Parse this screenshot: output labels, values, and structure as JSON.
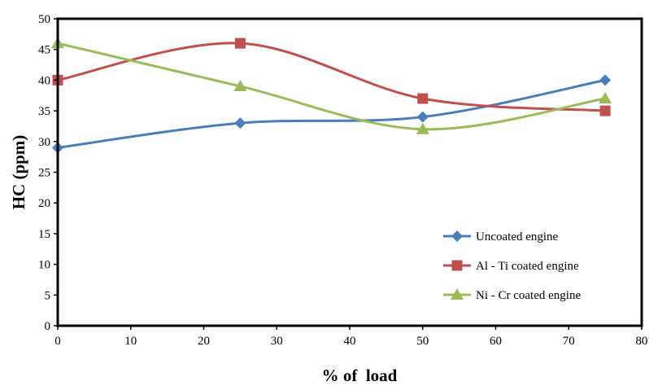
{
  "chart_data": {
    "type": "line",
    "title": "",
    "xlabel": "% of  load",
    "ylabel": "HC (ppm)",
    "xlim": [
      0,
      80
    ],
    "ylim": [
      0,
      50
    ],
    "xticks": [
      0,
      10,
      20,
      30,
      40,
      50,
      60,
      70,
      80
    ],
    "yticks": [
      0,
      5,
      10,
      15,
      20,
      25,
      30,
      35,
      40,
      45,
      50
    ],
    "grid": false,
    "smooth": true,
    "legend_position": "bottom-right",
    "series": [
      {
        "name": "Uncoated engine",
        "color": "#4a7ebb",
        "marker": "diamond",
        "x": [
          0,
          25,
          50,
          75
        ],
        "y": [
          29,
          33,
          34,
          40
        ]
      },
      {
        "name": "Al - Ti coated engine",
        "color": "#c0504d",
        "marker": "square",
        "x": [
          0,
          25,
          50,
          75
        ],
        "y": [
          40,
          46,
          37,
          35
        ]
      },
      {
        "name": "Ni - Cr coated engine",
        "color": "#9bbb59",
        "marker": "triangle",
        "x": [
          0,
          25,
          50,
          75
        ],
        "y": [
          46,
          39,
          32,
          37
        ]
      }
    ]
  }
}
